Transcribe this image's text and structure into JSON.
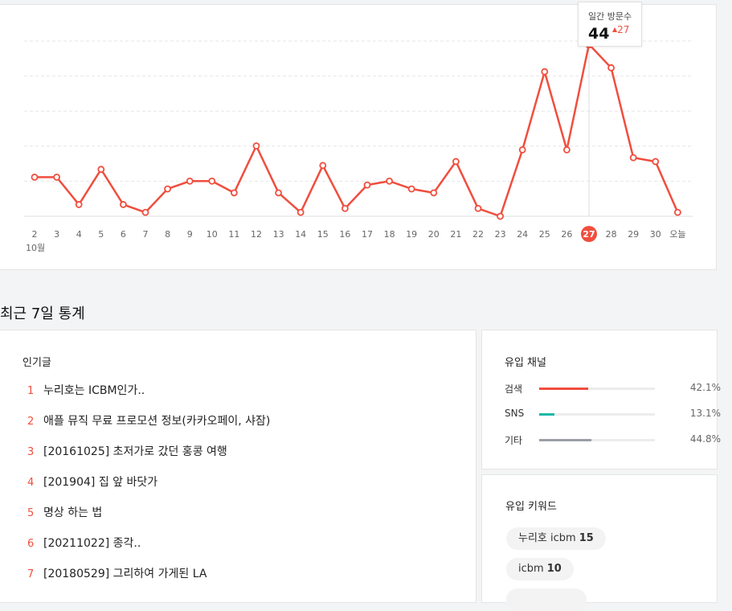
{
  "visitor_chart": {
    "tooltip": {
      "label": "일간 방문수",
      "value": "44",
      "delta": "27"
    },
    "month_label": "10월",
    "highlight_index": 25
  },
  "chart_data": {
    "type": "line",
    "title": "",
    "x": [
      "2",
      "3",
      "4",
      "5",
      "6",
      "7",
      "8",
      "9",
      "10",
      "11",
      "12",
      "13",
      "14",
      "15",
      "16",
      "17",
      "18",
      "19",
      "20",
      "21",
      "22",
      "23",
      "24",
      "25",
      "26",
      "27",
      "28",
      "29",
      "30",
      "오늘"
    ],
    "series": [
      {
        "values": [
          10,
          10,
          3,
          12,
          3,
          1,
          7,
          9,
          9,
          6,
          18,
          6,
          1,
          13,
          2,
          8,
          9,
          7,
          6,
          14,
          2,
          0,
          17,
          37,
          17,
          44,
          38,
          15,
          14,
          1
        ]
      }
    ],
    "ylim": [
      0,
      50
    ],
    "grid": true,
    "color": "#f04e3e"
  },
  "section_title": "최근 7일 통계",
  "popular": {
    "title": "인기글",
    "items": [
      {
        "rank": "1",
        "title": "누리호는 ICBM인가.."
      },
      {
        "rank": "2",
        "title": "애플 뮤직 무료 프로모션 정보(카카오페이, 샤잠)"
      },
      {
        "rank": "3",
        "title": "[20161025] 초저가로 갔던 홍콩 여행"
      },
      {
        "rank": "4",
        "title": "[201904] 집 앞 바닷가"
      },
      {
        "rank": "5",
        "title": "명상 하는 법"
      },
      {
        "rank": "6",
        "title": "[20211022] 종각.."
      },
      {
        "rank": "7",
        "title": "[20180529] 그리하여 가게된 LA"
      }
    ]
  },
  "channels": {
    "title": "유입 채널",
    "items": [
      {
        "name": "검색",
        "percent": "42.1%",
        "value": 42.1,
        "color": "#f04e3e"
      },
      {
        "name": "SNS",
        "percent": "13.1%",
        "value": 13.1,
        "color": "#1bb8a6"
      },
      {
        "name": "기타",
        "percent": "44.8%",
        "value": 44.8,
        "color": "#9a9ea8"
      }
    ]
  },
  "keywords": {
    "title": "유입 키워드",
    "items": [
      {
        "keyword": "누리호 icbm",
        "count": "15"
      },
      {
        "keyword": "icbm",
        "count": "10"
      }
    ]
  }
}
